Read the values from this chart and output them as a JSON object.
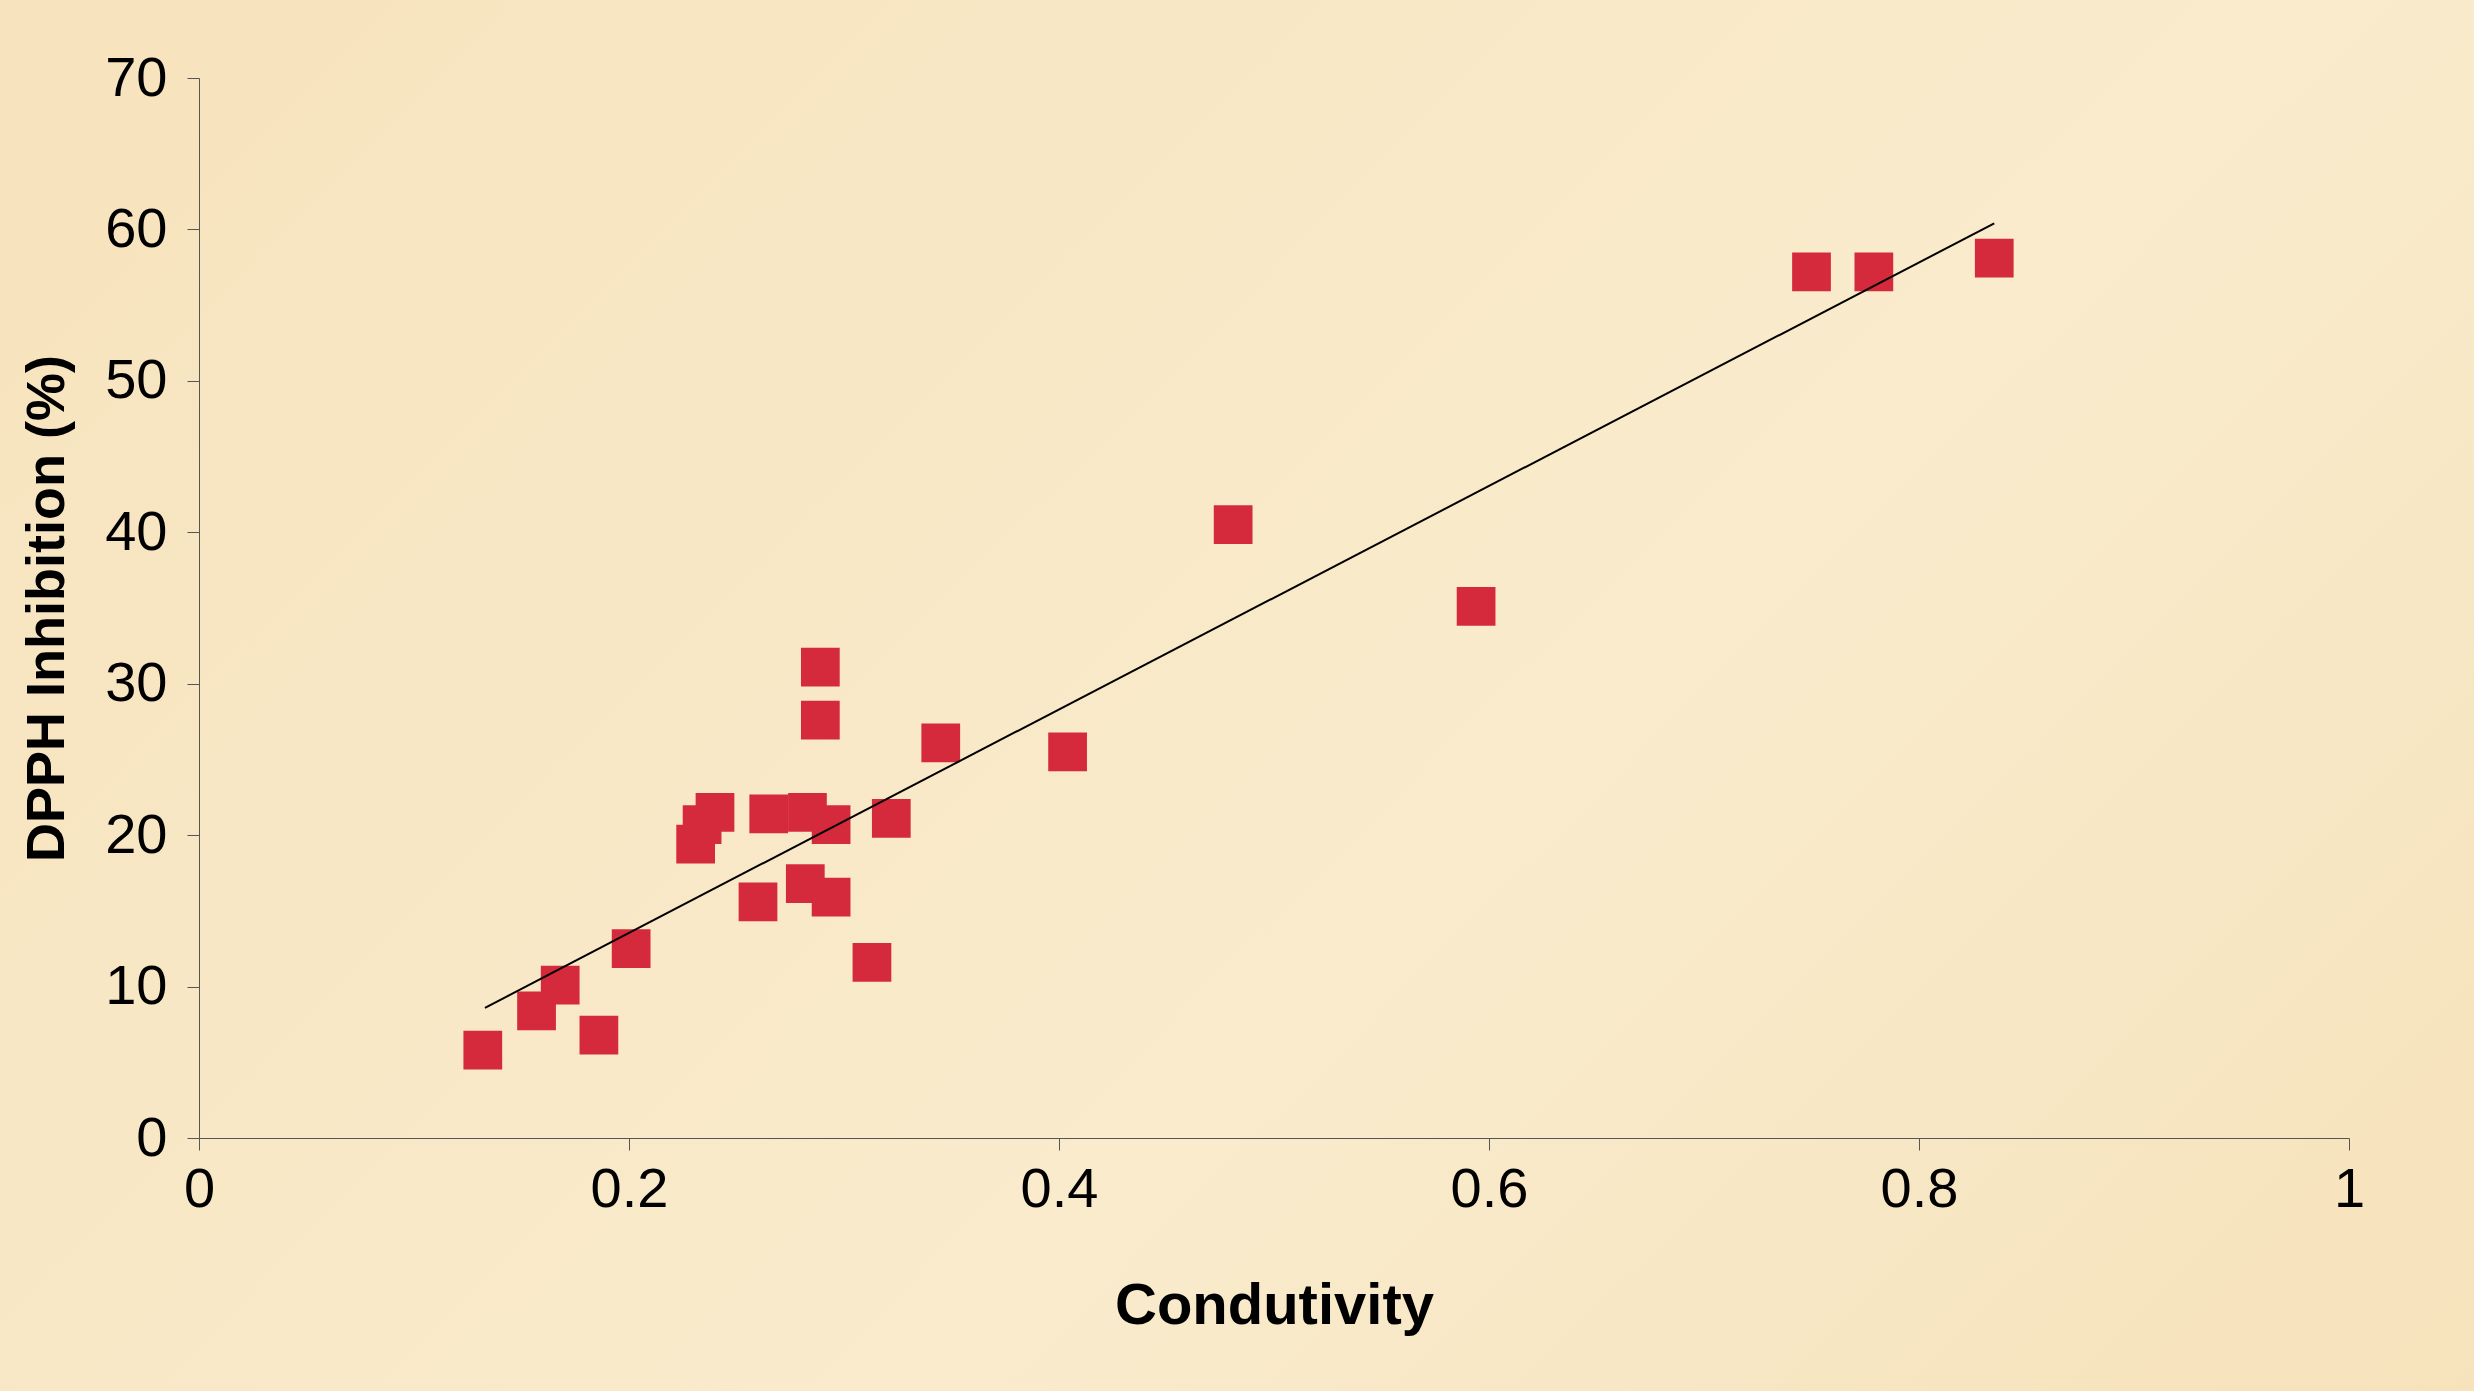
{
  "chart_data": {
    "type": "scatter",
    "xlabel": "Condutivity",
    "ylabel": "DPPH Inhibition (%)",
    "xlim": [
      0,
      1
    ],
    "xticks": [
      0,
      0.2,
      0.4,
      0.6,
      0.8,
      1
    ],
    "ylim": [
      0,
      70
    ],
    "yticks": [
      0,
      10,
      20,
      30,
      40,
      50,
      60,
      70
    ],
    "grid": false,
    "marker": "square",
    "series": [
      {
        "color": "#d42a3c",
        "x": [
          0.132,
          0.157,
          0.168,
          0.186,
          0.201,
          0.231,
          0.234,
          0.24,
          0.26,
          0.265,
          0.283,
          0.282,
          0.294,
          0.294,
          0.289,
          0.289,
          0.313,
          0.322,
          0.345,
          0.404,
          0.481,
          0.594,
          0.75,
          0.779,
          0.835
        ],
        "values": [
          5.8,
          8.4,
          10.1,
          6.8,
          12.5,
          19.4,
          20.7,
          21.5,
          15.6,
          21.4,
          21.5,
          16.8,
          20.7,
          15.9,
          27.6,
          31.1,
          11.6,
          21.1,
          26.1,
          25.5,
          40.5,
          35.1,
          57.2,
          57.2,
          58.1
        ]
      },
      {
        "type": "line",
        "color": "#000000",
        "line_style": "solid",
        "marker": "none",
        "x": [
          0.133,
          0.835
        ],
        "values": [
          8.6,
          60.4
        ]
      }
    ]
  }
}
